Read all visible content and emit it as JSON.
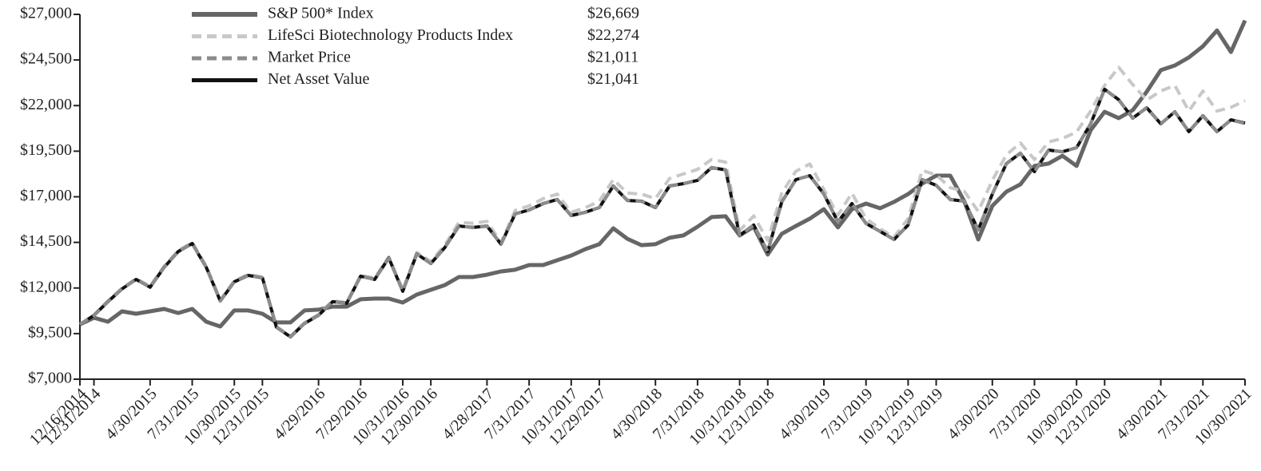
{
  "chart_data": {
    "type": "line",
    "categories": [
      "12/16/2014",
      "12/31/2014",
      null,
      null,
      null,
      "4/30/2015",
      null,
      null,
      "7/31/2015",
      null,
      null,
      "10/30/2015",
      null,
      "12/31/2015",
      null,
      null,
      null,
      "4/29/2016",
      null,
      null,
      "7/29/2016",
      null,
      null,
      "10/31/2016",
      null,
      "12/30/2016",
      null,
      null,
      null,
      "4/28/2017",
      null,
      null,
      "7/31/2017",
      null,
      null,
      "10/31/2017",
      null,
      "12/29/2017",
      null,
      null,
      null,
      "4/30/2018",
      null,
      null,
      "7/31/2018",
      null,
      null,
      "10/31/2018",
      null,
      "12/31/2018",
      null,
      null,
      null,
      "4/30/2019",
      null,
      null,
      "7/31/2019",
      null,
      null,
      "10/31/2019",
      null,
      "12/31/2019",
      null,
      null,
      null,
      "4/30/2020",
      null,
      null,
      "7/31/2020",
      null,
      null,
      "10/30/2020",
      null,
      "12/31/2020",
      null,
      null,
      null,
      "4/30/2021",
      null,
      null,
      "7/31/2021",
      null,
      null,
      "10/30/2021"
    ],
    "series": [
      {
        "name": "S&P 500* Index",
        "legend_value": "$26,669",
        "color": "#666666",
        "dash": false,
        "width": 5,
        "values": [
          10000,
          10370,
          10150,
          10720,
          10590,
          10720,
          10850,
          10630,
          10850,
          10150,
          9890,
          10770,
          10770,
          10590,
          10110,
          10110,
          10770,
          10810,
          10980,
          10980,
          11380,
          11420,
          11420,
          11200,
          11640,
          11900,
          12160,
          12600,
          12600,
          12730,
          12910,
          13000,
          13260,
          13260,
          13520,
          13780,
          14130,
          14400,
          15270,
          14700,
          14350,
          14400,
          14750,
          14880,
          15360,
          15890,
          15930,
          14880,
          15360,
          13830,
          14970,
          15400,
          15800,
          16320,
          15320,
          16320,
          16630,
          16370,
          16720,
          17150,
          17720,
          18160,
          18160,
          16760,
          14660,
          16500,
          17280,
          17680,
          18690,
          18820,
          19250,
          18690,
          20650,
          21660,
          21310,
          21750,
          22760,
          23940,
          24200,
          24640,
          25250,
          26120,
          24940,
          26669
        ]
      },
      {
        "name": "LifeSci Biotechnology Products Index",
        "legend_value": "$22,274",
        "color": "#c8c8c8",
        "dash": true,
        "width": 4,
        "values": [
          10000,
          10520,
          11300,
          12000,
          12520,
          12100,
          13200,
          14050,
          14500,
          13200,
          11350,
          12400,
          12750,
          12600,
          9900,
          9350,
          10100,
          10550,
          11300,
          11200,
          12700,
          12550,
          13700,
          11900,
          13950,
          13450,
          14350,
          15600,
          15550,
          15650,
          14500,
          16250,
          16500,
          16900,
          17150,
          16150,
          16400,
          16750,
          17950,
          17200,
          17150,
          16900,
          18000,
          18250,
          18500,
          19050,
          18900,
          15150,
          15950,
          14600,
          17200,
          18400,
          18800,
          17400,
          16000,
          17200,
          15800,
          15250,
          14800,
          15800,
          18450,
          18200,
          17500,
          17300,
          16200,
          17900,
          19300,
          19950,
          19050,
          20000,
          20200,
          20550,
          21700,
          23100,
          24100,
          23150,
          22300,
          22800,
          23100,
          21700,
          22800,
          21700,
          21900,
          22274
        ]
      },
      {
        "name": "Market Price",
        "legend_value": "$21,011",
        "color": "#8c8c8c",
        "dash": true,
        "width": 4,
        "values": [
          10000,
          10490,
          11240,
          11960,
          12460,
          12050,
          13120,
          14010,
          14430,
          13140,
          11280,
          12350,
          12680,
          12570,
          9860,
          9310,
          10070,
          10490,
          11260,
          11150,
          12660,
          12460,
          13640,
          11830,
          13860,
          13350,
          14210,
          15410,
          15310,
          15410,
          14390,
          16070,
          16270,
          16640,
          16840,
          15980,
          16140,
          16420,
          17580,
          16810,
          16750,
          16420,
          17580,
          17730,
          17890,
          18610,
          18460,
          14890,
          15440,
          14010,
          16710,
          17950,
          18150,
          17160,
          15610,
          16640,
          15530,
          15110,
          14650,
          15460,
          17930,
          17640,
          16840,
          16770,
          15180,
          17160,
          18810,
          19400,
          18370,
          19570,
          19460,
          19700,
          20990,
          22900,
          22310,
          21320,
          21870,
          21010,
          21650,
          20580,
          21430,
          20580,
          21210,
          21011
        ]
      },
      {
        "name": "Net Asset Value",
        "legend_value": "$21,041",
        "color": "#111111",
        "dash": false,
        "width": 4,
        "values": [
          10000,
          10500,
          11250,
          11950,
          12470,
          12040,
          13130,
          14000,
          14440,
          13130,
          11290,
          12340,
          12690,
          12560,
          9850,
          9320,
          10060,
          10500,
          11250,
          11160,
          12650,
          12470,
          13650,
          11820,
          13870,
          13340,
          14220,
          15400,
          15320,
          15400,
          14400,
          16060,
          16280,
          16630,
          16850,
          15970,
          16150,
          16410,
          17590,
          16800,
          16760,
          16410,
          17590,
          17720,
          17900,
          18600,
          18470,
          14880,
          15450,
          14000,
          16720,
          17940,
          18160,
          17150,
          15620,
          16630,
          15540,
          15100,
          14660,
          15450,
          17940,
          17630,
          16850,
          16760,
          15190,
          17150,
          18820,
          19390,
          18380,
          19560,
          19470,
          19690,
          21000,
          22890,
          22320,
          21310,
          21880,
          21000,
          21660,
          20570,
          21440,
          20570,
          21220,
          21041
        ]
      }
    ],
    "ylim": [
      7000,
      27000
    ],
    "yticks": [
      {
        "value": 7000,
        "label": "$7,000"
      },
      {
        "value": 9500,
        "label": "$9,500"
      },
      {
        "value": 12000,
        "label": "$12,000"
      },
      {
        "value": 14500,
        "label": "$14,500"
      },
      {
        "value": 17000,
        "label": "$17,000"
      },
      {
        "value": 19500,
        "label": "$19,500"
      },
      {
        "value": 22000,
        "label": "$22,000"
      },
      {
        "value": 24500,
        "label": "$24,500"
      },
      {
        "value": 27000,
        "label": "$27,000"
      }
    ],
    "legend": "top-left"
  }
}
